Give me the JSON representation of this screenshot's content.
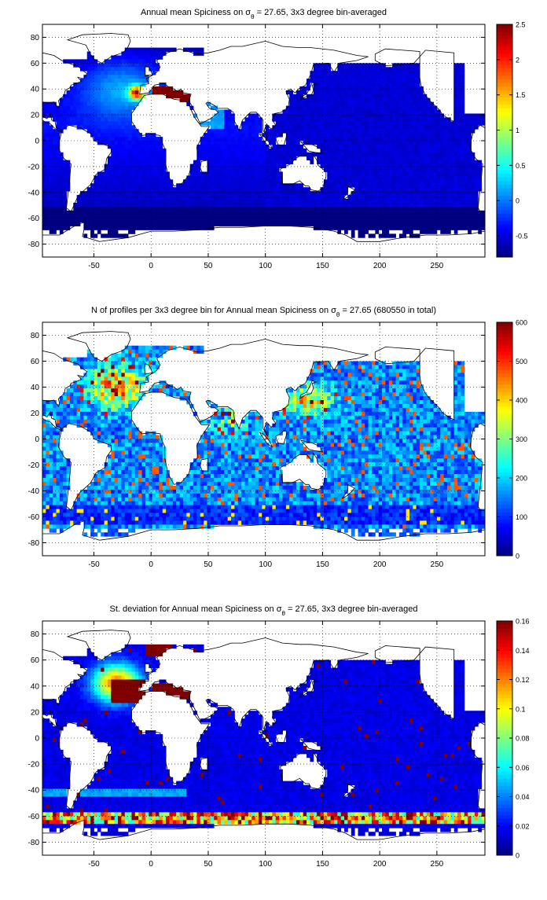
{
  "chart_data": [
    {
      "type": "heatmap",
      "title_main": "Annual mean Spiciness on σ",
      "title_sub": "θ",
      "title_tail": " = 27.65, 3x3 degree bin-averaged",
      "xlabel": "",
      "ylabel": "",
      "xlim": [
        -95,
        292
      ],
      "ylim": [
        -90,
        90
      ],
      "xticks": [
        -50,
        0,
        50,
        100,
        150,
        200,
        250
      ],
      "yticks": [
        -80,
        -60,
        -40,
        -20,
        0,
        20,
        40,
        60,
        80
      ],
      "xtick_labels": [
        "-50",
        "0",
        "50",
        "100",
        "150",
        "200",
        "250"
      ],
      "ytick_labels": [
        "-80",
        "-60",
        "-40",
        "-20",
        "0",
        "20",
        "40",
        "60",
        "80"
      ],
      "grid": "dotted",
      "colormap": "jet",
      "clim": [
        -0.8,
        2.5
      ],
      "colorbar_ticks": [
        -0.5,
        0,
        0.5,
        1,
        1.5,
        2,
        2.5
      ],
      "colorbar_labels": [
        "-0.5",
        "0",
        "0.5",
        "1",
        "1.5",
        "2",
        "2.5"
      ],
      "bin_size_deg": 3,
      "pattern": "spice"
    },
    {
      "type": "heatmap",
      "title_main": "N of profiles per 3x3 degree bin for Annual mean Spiciness on σ",
      "title_sub": "θ",
      "title_tail": " = 27.65 (680550 in total)",
      "xlabel": "",
      "ylabel": "",
      "xlim": [
        -95,
        292
      ],
      "ylim": [
        -90,
        90
      ],
      "xticks": [
        -50,
        0,
        50,
        100,
        150,
        200,
        250
      ],
      "yticks": [
        -80,
        -60,
        -40,
        -20,
        0,
        20,
        40,
        60,
        80
      ],
      "xtick_labels": [
        "-50",
        "0",
        "50",
        "100",
        "150",
        "200",
        "250"
      ],
      "ytick_labels": [
        "-80",
        "-60",
        "-40",
        "-20",
        "0",
        "20",
        "40",
        "60",
        "80"
      ],
      "grid": "dotted",
      "colormap": "jet",
      "clim": [
        0,
        600
      ],
      "colorbar_ticks": [
        0,
        100,
        200,
        300,
        400,
        500,
        600
      ],
      "colorbar_labels": [
        "0",
        "100",
        "200",
        "300",
        "400",
        "500",
        "600"
      ],
      "total_profiles": 680550,
      "bin_size_deg": 3,
      "pattern": "count"
    },
    {
      "type": "heatmap",
      "title_main": "St. deviation for Annual mean Spiciness on σ",
      "title_sub": "θ",
      "title_tail": " = 27.65, 3x3 degree bin-averaged",
      "xlabel": "",
      "ylabel": "",
      "xlim": [
        -95,
        292
      ],
      "ylim": [
        -90,
        90
      ],
      "xticks": [
        -50,
        0,
        50,
        100,
        150,
        200,
        250
      ],
      "yticks": [
        -80,
        -60,
        -40,
        -20,
        0,
        20,
        40,
        60,
        80
      ],
      "xtick_labels": [
        "-50",
        "0",
        "50",
        "100",
        "150",
        "200",
        "250"
      ],
      "ytick_labels": [
        "-80",
        "-60",
        "-40",
        "-20",
        "0",
        "20",
        "40",
        "60",
        "80"
      ],
      "grid": "dotted",
      "colormap": "jet",
      "clim": [
        0,
        0.16
      ],
      "colorbar_ticks": [
        0,
        0.02,
        0.04,
        0.06,
        0.08,
        0.1,
        0.12,
        0.14,
        0.16
      ],
      "colorbar_labels": [
        "0",
        "0.02",
        "0.04",
        "0.06",
        "0.08",
        "0.1",
        "0.12",
        "0.14",
        "0.16"
      ],
      "bin_size_deg": 3,
      "pattern": "std"
    }
  ]
}
